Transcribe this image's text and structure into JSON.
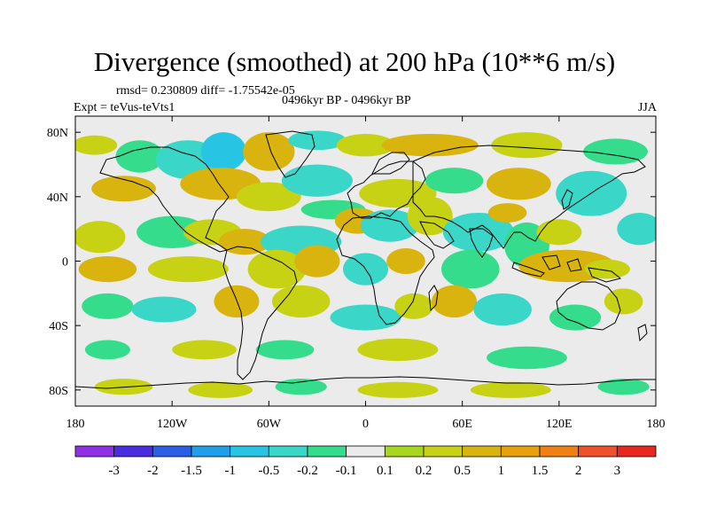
{
  "title": "Divergence (smoothed) at 200 hPa (10**6 m/s)",
  "stats_line": "rmsd= 0.230809 diff= -1.75542e-05",
  "experiment": "Expt = teVus-teVts1",
  "period": "0496kyr BP - 0496kyr BP",
  "season": "JJA",
  "map": {
    "lon_range": [
      -180,
      180
    ],
    "lat_range": [
      -90,
      90
    ],
    "lon_ticks": [
      {
        "value": -180,
        "label": "180"
      },
      {
        "value": -120,
        "label": "120W"
      },
      {
        "value": -60,
        "label": "60W"
      },
      {
        "value": 0,
        "label": "0"
      },
      {
        "value": 60,
        "label": "60E"
      },
      {
        "value": 120,
        "label": "120E"
      },
      {
        "value": 180,
        "label": "180"
      }
    ],
    "lat_ticks": [
      {
        "value": 80,
        "label": "80N"
      },
      {
        "value": 40,
        "label": "40N"
      },
      {
        "value": 0,
        "label": "0"
      },
      {
        "value": -40,
        "label": "40S"
      },
      {
        "value": -80,
        "label": "80S"
      }
    ],
    "background_color": "#ebebeb",
    "coastline_color": "#000000"
  },
  "colorbar": {
    "colors": [
      "#8f2fe6",
      "#4a2de0",
      "#2a5fe6",
      "#1f9fea",
      "#27c4e4",
      "#3ad6c8",
      "#35dc8c",
      "#ebebeb",
      "#a8d81e",
      "#c8d214",
      "#d9b30e",
      "#e8a10c",
      "#f08014",
      "#f0502a",
      "#e8281f"
    ],
    "labels": [
      "-3",
      "-2",
      "-1.5",
      "-1",
      "-0.5",
      "-0.2",
      "-0.1",
      "0.1",
      "0.2",
      "0.5",
      "1",
      "1.5",
      "2",
      "3"
    ]
  },
  "features": [
    {
      "lon": -168,
      "lat": 72,
      "rx": 14,
      "ry": 6,
      "level": 0.2
    },
    {
      "lon": -140,
      "lat": 65,
      "rx": 15,
      "ry": 10,
      "level": -0.2
    },
    {
      "lon": -110,
      "lat": 63,
      "rx": 20,
      "ry": 12,
      "level": -0.5
    },
    {
      "lon": -88,
      "lat": 68,
      "rx": 14,
      "ry": 12,
      "level": -1
    },
    {
      "lon": -60,
      "lat": 68,
      "rx": 16,
      "ry": 12,
      "level": 0.5
    },
    {
      "lon": -30,
      "lat": 75,
      "rx": 18,
      "ry": 6,
      "level": -0.5
    },
    {
      "lon": 0,
      "lat": 72,
      "rx": 18,
      "ry": 7,
      "level": 0.2
    },
    {
      "lon": 40,
      "lat": 72,
      "rx": 30,
      "ry": 7,
      "level": 0.5
    },
    {
      "lon": 100,
      "lat": 72,
      "rx": 22,
      "ry": 8,
      "level": 0.2
    },
    {
      "lon": 155,
      "lat": 68,
      "rx": 20,
      "ry": 8,
      "level": -0.2
    },
    {
      "lon": -150,
      "lat": 45,
      "rx": 20,
      "ry": 8,
      "level": 0.5
    },
    {
      "lon": -90,
      "lat": 48,
      "rx": 25,
      "ry": 10,
      "level": 0.5
    },
    {
      "lon": -60,
      "lat": 40,
      "rx": 20,
      "ry": 9,
      "level": 0.2
    },
    {
      "lon": -30,
      "lat": 50,
      "rx": 22,
      "ry": 10,
      "level": -0.5
    },
    {
      "lon": -20,
      "lat": 32,
      "rx": 20,
      "ry": 6,
      "level": -0.2
    },
    {
      "lon": 20,
      "lat": 42,
      "rx": 24,
      "ry": 9,
      "level": 0.2
    },
    {
      "lon": 55,
      "lat": 50,
      "rx": 18,
      "ry": 8,
      "level": -0.2
    },
    {
      "lon": 95,
      "lat": 48,
      "rx": 20,
      "ry": 10,
      "level": 0.5
    },
    {
      "lon": 140,
      "lat": 42,
      "rx": 22,
      "ry": 14,
      "level": -0.5
    },
    {
      "lon": 170,
      "lat": 20,
      "rx": 14,
      "ry": 10,
      "level": -0.5
    },
    {
      "lon": -165,
      "lat": 15,
      "rx": 16,
      "ry": 10,
      "level": 0.2
    },
    {
      "lon": -120,
      "lat": 18,
      "rx": 22,
      "ry": 10,
      "level": -0.2
    },
    {
      "lon": -95,
      "lat": 18,
      "rx": 18,
      "ry": 8,
      "level": 0.2
    },
    {
      "lon": -75,
      "lat": 12,
      "rx": 16,
      "ry": 8,
      "level": 0.5
    },
    {
      "lon": -40,
      "lat": 12,
      "rx": 25,
      "ry": 10,
      "level": -0.5
    },
    {
      "lon": -5,
      "lat": 25,
      "rx": 14,
      "ry": 8,
      "level": 0.5
    },
    {
      "lon": 15,
      "lat": 22,
      "rx": 18,
      "ry": 10,
      "level": -0.5
    },
    {
      "lon": 40,
      "lat": 28,
      "rx": 14,
      "ry": 12,
      "level": 0.2
    },
    {
      "lon": 70,
      "lat": 18,
      "rx": 22,
      "ry": 12,
      "level": -0.5
    },
    {
      "lon": 88,
      "lat": 30,
      "rx": 12,
      "ry": 6,
      "level": 0.5
    },
    {
      "lon": 100,
      "lat": 10,
      "rx": 14,
      "ry": 14,
      "level": -0.2
    },
    {
      "lon": 120,
      "lat": 18,
      "rx": 14,
      "ry": 8,
      "level": 0.2
    },
    {
      "lon": -160,
      "lat": -5,
      "rx": 18,
      "ry": 8,
      "level": 0.5
    },
    {
      "lon": -110,
      "lat": -5,
      "rx": 25,
      "ry": 8,
      "level": 0.2
    },
    {
      "lon": -55,
      "lat": -5,
      "rx": 18,
      "ry": 12,
      "level": 0.2
    },
    {
      "lon": -30,
      "lat": 0,
      "rx": 14,
      "ry": 10,
      "level": 0.5
    },
    {
      "lon": 0,
      "lat": -5,
      "rx": 14,
      "ry": 10,
      "level": -0.5
    },
    {
      "lon": 25,
      "lat": 0,
      "rx": 12,
      "ry": 8,
      "level": 0.5
    },
    {
      "lon": 65,
      "lat": -5,
      "rx": 18,
      "ry": 12,
      "level": -0.2
    },
    {
      "lon": 125,
      "lat": -3,
      "rx": 30,
      "ry": 10,
      "level": 0.5
    },
    {
      "lon": 150,
      "lat": -5,
      "rx": 14,
      "ry": 6,
      "level": 0.2
    },
    {
      "lon": -160,
      "lat": -28,
      "rx": 16,
      "ry": 8,
      "level": -0.2
    },
    {
      "lon": -125,
      "lat": -30,
      "rx": 20,
      "ry": 8,
      "level": -0.5
    },
    {
      "lon": -80,
      "lat": -25,
      "rx": 14,
      "ry": 10,
      "level": 0.5
    },
    {
      "lon": -40,
      "lat": -25,
      "rx": 18,
      "ry": 10,
      "level": 0.2
    },
    {
      "lon": 0,
      "lat": -35,
      "rx": 22,
      "ry": 8,
      "level": -0.5
    },
    {
      "lon": 30,
      "lat": -28,
      "rx": 12,
      "ry": 8,
      "level": 0.2
    },
    {
      "lon": 55,
      "lat": -25,
      "rx": 14,
      "ry": 10,
      "level": 0.5
    },
    {
      "lon": 85,
      "lat": -30,
      "rx": 18,
      "ry": 10,
      "level": -0.5
    },
    {
      "lon": 130,
      "lat": -35,
      "rx": 16,
      "ry": 8,
      "level": -0.2
    },
    {
      "lon": 160,
      "lat": -25,
      "rx": 12,
      "ry": 8,
      "level": 0.2
    },
    {
      "lon": -160,
      "lat": -55,
      "rx": 14,
      "ry": 6,
      "level": -0.2
    },
    {
      "lon": -100,
      "lat": -55,
      "rx": 20,
      "ry": 6,
      "level": 0.2
    },
    {
      "lon": -50,
      "lat": -55,
      "rx": 18,
      "ry": 6,
      "level": -0.2
    },
    {
      "lon": 20,
      "lat": -55,
      "rx": 25,
      "ry": 7,
      "level": 0.2
    },
    {
      "lon": 100,
      "lat": -60,
      "rx": 25,
      "ry": 7,
      "level": -0.2
    },
    {
      "lon": -150,
      "lat": -78,
      "rx": 18,
      "ry": 5,
      "level": 0.2
    },
    {
      "lon": -90,
      "lat": -80,
      "rx": 20,
      "ry": 5,
      "level": 0.2
    },
    {
      "lon": -40,
      "lat": -78,
      "rx": 16,
      "ry": 5,
      "level": -0.2
    },
    {
      "lon": 20,
      "lat": -80,
      "rx": 25,
      "ry": 5,
      "level": 0.2
    },
    {
      "lon": 90,
      "lat": -80,
      "rx": 25,
      "ry": 5,
      "level": 0.2
    },
    {
      "lon": 160,
      "lat": -78,
      "rx": 16,
      "ry": 5,
      "level": -0.2
    }
  ]
}
